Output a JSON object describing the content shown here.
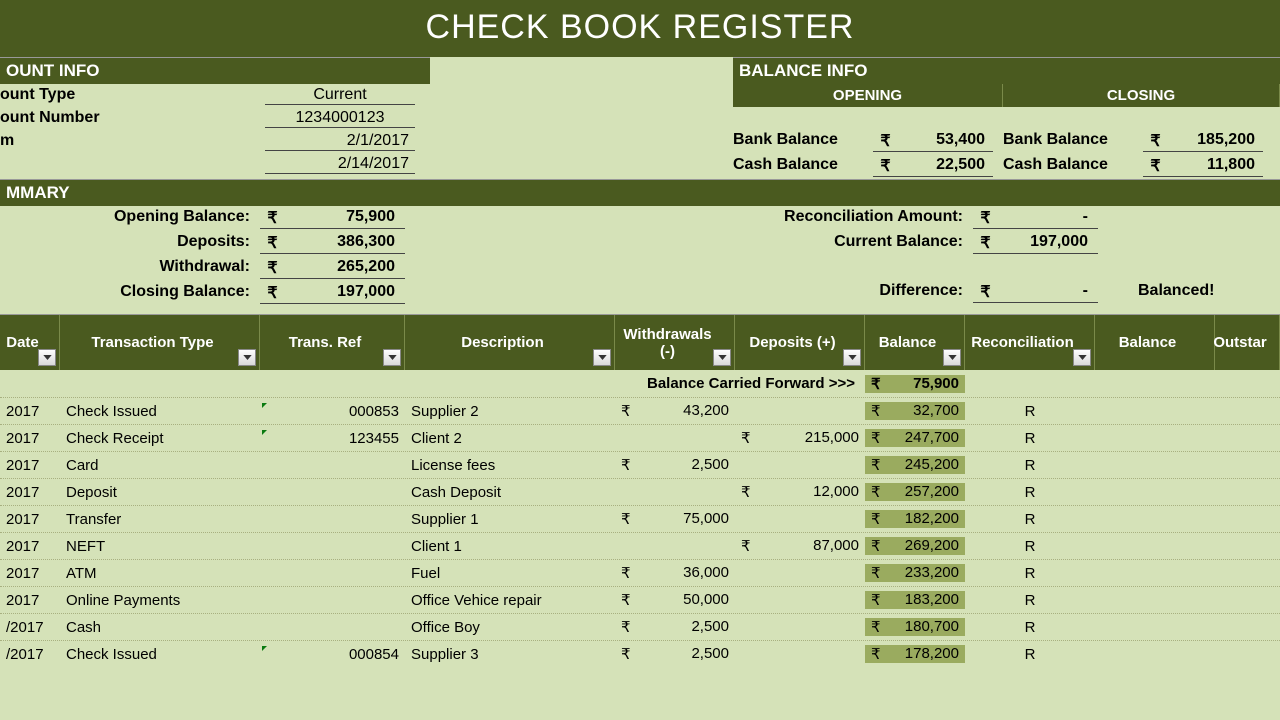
{
  "colors": {
    "header_bg": "#4a5a1f",
    "header_fg": "#ffffff",
    "page_bg": "#d5e2b8",
    "balance_col_bg": "#9aab5f",
    "text": "#000000",
    "filter_border": "#888888"
  },
  "title": "CHECK BOOK REGISTER",
  "account_info": {
    "header": "OUNT INFO",
    "rows": [
      {
        "label": "ount Type",
        "value": "Current"
      },
      {
        "label": "ount Number",
        "value": "1234000123"
      },
      {
        "label": "m",
        "value": "2/1/2017",
        "date": true
      },
      {
        "label": "",
        "value": "2/14/2017",
        "date": true
      }
    ]
  },
  "balance_info": {
    "header": "BALANCE INFO",
    "opening": {
      "title": "OPENING",
      "rows": [
        {
          "label": "Bank Balance",
          "currency": "₹",
          "value": "53,400"
        },
        {
          "label": "Cash Balance",
          "currency": "₹",
          "value": "22,500"
        }
      ]
    },
    "closing": {
      "title": "CLOSING",
      "rows": [
        {
          "label": "Bank Balance",
          "currency": "₹",
          "value": "185,200"
        },
        {
          "label": "Cash Balance",
          "currency": "₹",
          "value": "11,800"
        }
      ]
    }
  },
  "summary": {
    "header": "MMARY",
    "left": [
      {
        "label": "Opening Balance:",
        "currency": "₹",
        "value": "75,900"
      },
      {
        "label": "Deposits:",
        "currency": "₹",
        "value": "386,300"
      },
      {
        "label": "Withdrawal:",
        "currency": "₹",
        "value": "265,200"
      },
      {
        "label": "Closing Balance:",
        "currency": "₹",
        "value": "197,000"
      }
    ],
    "right": [
      {
        "label": "Reconciliation Amount:",
        "currency": "₹",
        "value": "-"
      },
      {
        "label": "Current Balance:",
        "currency": "₹",
        "value": "197,000"
      },
      {
        "label": "Difference:",
        "currency": "₹",
        "value": "-",
        "balanced": "Balanced!"
      }
    ]
  },
  "table": {
    "headers": [
      "Date",
      "Transaction Type",
      "Trans. Ref",
      "Description",
      "Withdrawals (-)",
      "Deposits (+)",
      "Balance",
      "Reconciliation",
      "Balance",
      "Outstar"
    ],
    "carried_label": "Balance Carried Forward >>>",
    "carried_currency": "₹",
    "carried_value": "75,900",
    "rows": [
      {
        "date": "2017",
        "type": "Check Issued",
        "ref": "000853",
        "tick": true,
        "desc": "Supplier 2",
        "wd_cur": "₹",
        "wd": "43,200",
        "dep_cur": "",
        "dep": "",
        "bal_cur": "₹",
        "bal": "32,700",
        "rec": "R"
      },
      {
        "date": "2017",
        "type": "Check Receipt",
        "ref": "123455",
        "tick": true,
        "desc": "Client 2",
        "wd_cur": "",
        "wd": "",
        "dep_cur": "₹",
        "dep": "215,000",
        "bal_cur": "₹",
        "bal": "247,700",
        "rec": "R"
      },
      {
        "date": "2017",
        "type": "Card",
        "ref": "",
        "tick": false,
        "desc": "License fees",
        "wd_cur": "₹",
        "wd": "2,500",
        "dep_cur": "",
        "dep": "",
        "bal_cur": "₹",
        "bal": "245,200",
        "rec": "R"
      },
      {
        "date": "2017",
        "type": "Deposit",
        "ref": "",
        "tick": false,
        "desc": "Cash Deposit",
        "wd_cur": "",
        "wd": "",
        "dep_cur": "₹",
        "dep": "12,000",
        "bal_cur": "₹",
        "bal": "257,200",
        "rec": "R"
      },
      {
        "date": "2017",
        "type": "Transfer",
        "ref": "",
        "tick": false,
        "desc": "Supplier 1",
        "wd_cur": "₹",
        "wd": "75,000",
        "dep_cur": "",
        "dep": "",
        "bal_cur": "₹",
        "bal": "182,200",
        "rec": "R"
      },
      {
        "date": "2017",
        "type": "NEFT",
        "ref": "",
        "tick": false,
        "desc": "Client 1",
        "wd_cur": "",
        "wd": "",
        "dep_cur": "₹",
        "dep": "87,000",
        "bal_cur": "₹",
        "bal": "269,200",
        "rec": "R"
      },
      {
        "date": "2017",
        "type": "ATM",
        "ref": "",
        "tick": false,
        "desc": "Fuel",
        "wd_cur": "₹",
        "wd": "36,000",
        "dep_cur": "",
        "dep": "",
        "bal_cur": "₹",
        "bal": "233,200",
        "rec": "R"
      },
      {
        "date": "2017",
        "type": "Online Payments",
        "ref": "",
        "tick": false,
        "desc": "Office Vehice repair",
        "wd_cur": "₹",
        "wd": "50,000",
        "dep_cur": "",
        "dep": "",
        "bal_cur": "₹",
        "bal": "183,200",
        "rec": "R"
      },
      {
        "date": "/2017",
        "type": "Cash",
        "ref": "",
        "tick": false,
        "desc": "Office Boy",
        "wd_cur": "₹",
        "wd": "2,500",
        "dep_cur": "",
        "dep": "",
        "bal_cur": "₹",
        "bal": "180,700",
        "rec": "R"
      },
      {
        "date": "/2017",
        "type": "Check Issued",
        "ref": "000854",
        "tick": true,
        "desc": "Supplier 3",
        "wd_cur": "₹",
        "wd": "2,500",
        "dep_cur": "",
        "dep": "",
        "bal_cur": "₹",
        "bal": "178,200",
        "rec": "R"
      }
    ]
  }
}
